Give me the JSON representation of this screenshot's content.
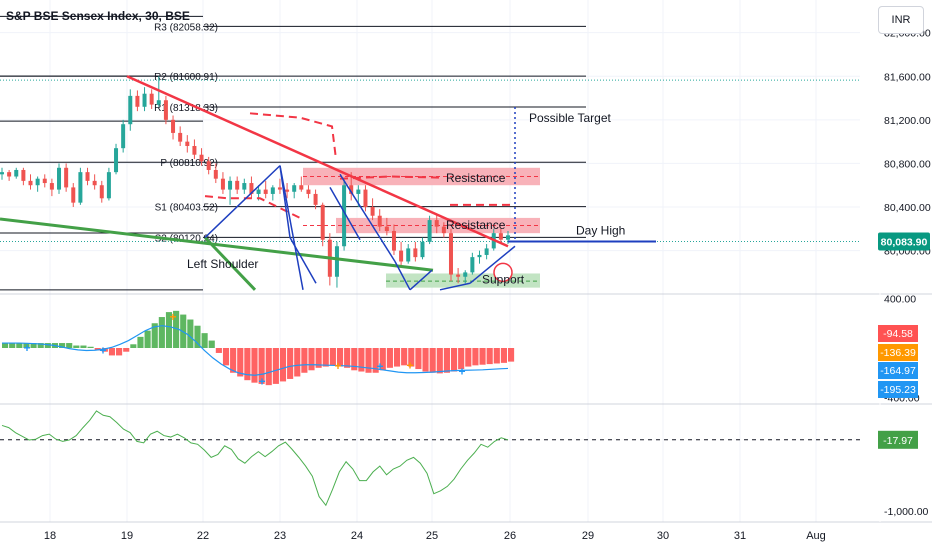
{
  "header": {
    "title": "S&P BSE Sensex Index, 30, BSE",
    "currency": "INR"
  },
  "colors": {
    "up": "#26a69a",
    "down": "#ef5350",
    "trendline": "#f23645",
    "neckline": "#43a047",
    "channel": "#1e3fbf",
    "resistance_fill": "#f7a5ad",
    "support_fill": "#b7dfb9",
    "macd_pos": "#4caf50",
    "macd_neg": "#ff5252",
    "signal": "#2196f3",
    "price_label_bg": "#089981"
  },
  "chart_data": [
    {
      "type": "candlestick",
      "panel": "price",
      "title": "S&P BSE Sensex Index, 30, BSE",
      "y_ticks": [
        "82,000.00",
        "81,600.00",
        "81,200.00",
        "80,800.00",
        "80,400.00",
        "80,000.00"
      ],
      "ylim": [
        79620,
        82300
      ],
      "x_ticks": [
        "18",
        "19",
        "22",
        "23",
        "24",
        "25",
        "26",
        "29",
        "30",
        "31",
        "Aug"
      ],
      "current_price": "80,083.90",
      "pivot_levels": [
        {
          "label": "R3 (82058.32)",
          "value": 82058.32
        },
        {
          "label": "R2 (81600.91)",
          "value": 81600.91
        },
        {
          "label": "R1 (81318.33)",
          "value": 81318.33
        },
        {
          "label": "P (80810.92)",
          "value": 80810.92
        },
        {
          "label": "S1 (80403.52)",
          "value": 80403.52
        },
        {
          "label": "S2 (80120.94)",
          "value": 80120.94
        }
      ],
      "annotations": [
        "Possible Target",
        "Resistance",
        "Resistance",
        "Day High",
        "Left Shoulder",
        "Support"
      ],
      "candles": [
        [
          80700,
          80760,
          80650,
          80720
        ],
        [
          80720,
          80740,
          80640,
          80680
        ],
        [
          80680,
          80760,
          80660,
          80740
        ],
        [
          80740,
          80760,
          80600,
          80640
        ],
        [
          80640,
          80700,
          80560,
          80600
        ],
        [
          80600,
          80680,
          80540,
          80660
        ],
        [
          80660,
          80700,
          80580,
          80620
        ],
        [
          80620,
          80660,
          80500,
          80560
        ],
        [
          80560,
          80800,
          80520,
          80760
        ],
        [
          80760,
          80800,
          80540,
          80580
        ],
        [
          80580,
          80620,
          80400,
          80440
        ],
        [
          80440,
          80760,
          80420,
          80720
        ],
        [
          80720,
          80760,
          80600,
          80640
        ],
        [
          80640,
          80700,
          80560,
          80600
        ],
        [
          80600,
          80640,
          80440,
          80480
        ],
        [
          80480,
          80760,
          80460,
          80720
        ],
        [
          80720,
          80980,
          80700,
          80940
        ],
        [
          80940,
          81200,
          80900,
          81160
        ],
        [
          81160,
          81480,
          81100,
          81420
        ],
        [
          81420,
          81470,
          81280,
          81320
        ],
        [
          81320,
          81500,
          81280,
          81440
        ],
        [
          81440,
          81480,
          81300,
          81340
        ],
        [
          81340,
          81600,
          81320,
          81380
        ],
        [
          81380,
          81420,
          81160,
          81200
        ],
        [
          81200,
          81240,
          81020,
          81080
        ],
        [
          81080,
          81140,
          80960,
          81000
        ],
        [
          81000,
          81060,
          80900,
          80960
        ],
        [
          80960,
          81020,
          80840,
          80880
        ],
        [
          80880,
          80940,
          80780,
          80820
        ],
        [
          80820,
          80860,
          80700,
          80740
        ],
        [
          80740,
          80800,
          80620,
          80660
        ],
        [
          80660,
          80720,
          80520,
          80560
        ],
        [
          80560,
          80680,
          80420,
          80640
        ],
        [
          80640,
          80680,
          80520,
          80560
        ],
        [
          80560,
          80660,
          80520,
          80620
        ],
        [
          80620,
          80680,
          80480,
          80520
        ],
        [
          80520,
          80600,
          80460,
          80560
        ],
        [
          80560,
          80640,
          80480,
          80520
        ],
        [
          80520,
          80600,
          80460,
          80580
        ],
        [
          80580,
          80660,
          80520,
          80560
        ],
        [
          80560,
          80620,
          80480,
          80540
        ],
        [
          80540,
          80620,
          80480,
          80600
        ],
        [
          80600,
          80680,
          80540,
          80560
        ],
        [
          80560,
          80600,
          80480,
          80520
        ],
        [
          80520,
          80560,
          80380,
          80420
        ],
        [
          80420,
          80440,
          80040,
          80100
        ],
        [
          80100,
          80160,
          79680,
          79760
        ],
        [
          79760,
          80080,
          79660,
          80040
        ],
        [
          80040,
          80660,
          80000,
          80600
        ],
        [
          80600,
          80720,
          80460,
          80520
        ],
        [
          80520,
          80600,
          80400,
          80560
        ],
        [
          80560,
          80600,
          80360,
          80400
        ],
        [
          80400,
          80480,
          80280,
          80320
        ],
        [
          80320,
          80380,
          80180,
          80220
        ],
        [
          80220,
          80300,
          80140,
          80180
        ],
        [
          80180,
          80240,
          79960,
          80000
        ],
        [
          80000,
          80080,
          79860,
          79900
        ],
        [
          79900,
          80060,
          79880,
          80020
        ],
        [
          80020,
          80080,
          79900,
          79940
        ],
        [
          79940,
          80120,
          79920,
          80080
        ],
        [
          80080,
          80320,
          80060,
          80280
        ],
        [
          80280,
          80340,
          80160,
          80220
        ],
        [
          80220,
          80260,
          80120,
          80160
        ],
        [
          80160,
          80200,
          79720,
          79780
        ],
        [
          79780,
          79840,
          79700,
          79760
        ],
        [
          79760,
          79820,
          79700,
          79800
        ],
        [
          79800,
          79980,
          79780,
          79940
        ],
        [
          79940,
          80000,
          79880,
          79960
        ],
        [
          79960,
          80060,
          79920,
          80020
        ],
        [
          80020,
          80200,
          80000,
          80160
        ],
        [
          80160,
          80200,
          80060,
          80100
        ],
        [
          80100,
          80180,
          80060,
          80140
        ]
      ]
    },
    {
      "type": "bar",
      "panel": "macd",
      "y_ticks": [
        "400.00",
        "-400.00"
      ],
      "ylim": [
        -420,
        420
      ],
      "value_labels": [
        "-94.58",
        "-136.39",
        "-164.97",
        "-195.23"
      ],
      "label_values": [
        -94.58,
        -136.39,
        -164.97,
        -195.23
      ],
      "histogram": [
        40,
        40,
        40,
        40,
        40,
        40,
        40,
        40,
        40,
        40,
        20,
        20,
        10,
        -20,
        -30,
        -60,
        -60,
        -30,
        30,
        90,
        140,
        200,
        250,
        290,
        300,
        270,
        230,
        180,
        120,
        60,
        -40,
        -140,
        -200,
        -230,
        -260,
        -280,
        -290,
        -300,
        -290,
        -270,
        -250,
        -230,
        -200,
        -180,
        -160,
        -150,
        -140,
        -150,
        -160,
        -180,
        -190,
        -200,
        -200,
        -180,
        -160,
        -150,
        -140,
        -150,
        -170,
        -190,
        -200,
        -205,
        -200,
        -190,
        -170,
        -150,
        -140,
        -135,
        -130,
        -125,
        -120,
        -110
      ],
      "signal": [
        40,
        40,
        40,
        38,
        35,
        30,
        22,
        10,
        -5,
        -15,
        -20,
        -18,
        -10,
        5,
        30,
        60,
        100,
        140,
        170,
        180,
        170,
        150,
        110,
        50,
        -20,
        -80,
        -130,
        -170,
        -200,
        -215,
        -220,
        -210,
        -190,
        -170,
        -150,
        -140,
        -135,
        -135,
        -138,
        -140,
        -142,
        -145,
        -150,
        -158,
        -165,
        -175,
        -185,
        -195,
        -200,
        -200,
        -198,
        -195,
        -190,
        -185,
        -182,
        -180,
        -178,
        -176,
        -172,
        -168,
        -165
      ]
    },
    {
      "type": "line",
      "panel": "oscillator",
      "y_ticks": [
        "-1,000.00"
      ],
      "ylim": [
        -1150,
        420
      ],
      "reference_line": -17.97,
      "value_label": "-17.97",
      "values": [
        180,
        150,
        80,
        30,
        -20,
        -10,
        40,
        60,
        -10,
        -40,
        -20,
        40,
        150,
        250,
        380,
        320,
        300,
        220,
        130,
        80,
        -40,
        -60,
        60,
        100,
        40,
        20,
        60,
        10,
        -60,
        -80,
        -160,
        -260,
        -220,
        -100,
        -150,
        -280,
        -340,
        -250,
        -180,
        -250,
        -180,
        -100,
        -50,
        -150,
        -260,
        -380,
        -520,
        -800,
        -920,
        -700,
        -460,
        -320,
        -420,
        -580,
        -580,
        -460,
        -380,
        -500,
        -420,
        -380,
        -300,
        -260,
        -340,
        -480,
        -760,
        -720,
        -660,
        -560,
        -420,
        -300,
        -200,
        -80,
        -120,
        -40,
        10,
        -20
      ]
    }
  ]
}
